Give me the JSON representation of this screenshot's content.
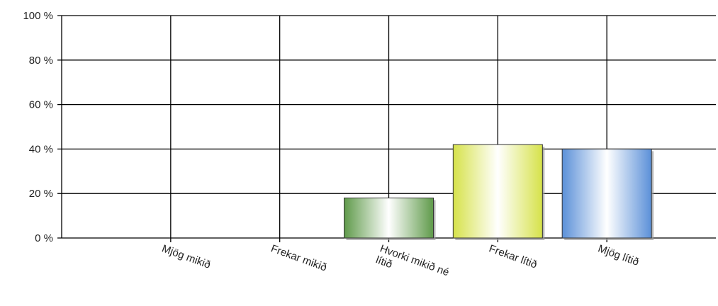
{
  "chart_data": {
    "type": "bar",
    "categories": [
      [
        "Mjög mikið"
      ],
      [
        "Frekar mikið"
      ],
      [
        "Hvorki mikið né",
        "lítið"
      ],
      [
        "Frekar lítið"
      ],
      [
        "Mjög lítið"
      ]
    ],
    "values": [
      0,
      0,
      18,
      42,
      40
    ],
    "ylim": [
      0,
      100
    ],
    "yticks": [
      0,
      20,
      40,
      60,
      80,
      100
    ],
    "ytick_labels": [
      "0 %",
      "20 %",
      "40 %",
      "60 %",
      "80 %",
      "100 %"
    ],
    "grid": true,
    "bar_colors": [
      [
        "#6aa04f",
        "#ffffff",
        "#6aa04f"
      ],
      [
        "#6aa04f",
        "#ffffff",
        "#6aa04f"
      ],
      [
        "#5f9a4a",
        "#ffffff",
        "#5f9a4a"
      ],
      [
        "#d6e24a",
        "#ffffff",
        "#d6e24a"
      ],
      [
        "#5b90d8",
        "#ffffff",
        "#5b90d8"
      ]
    ]
  }
}
